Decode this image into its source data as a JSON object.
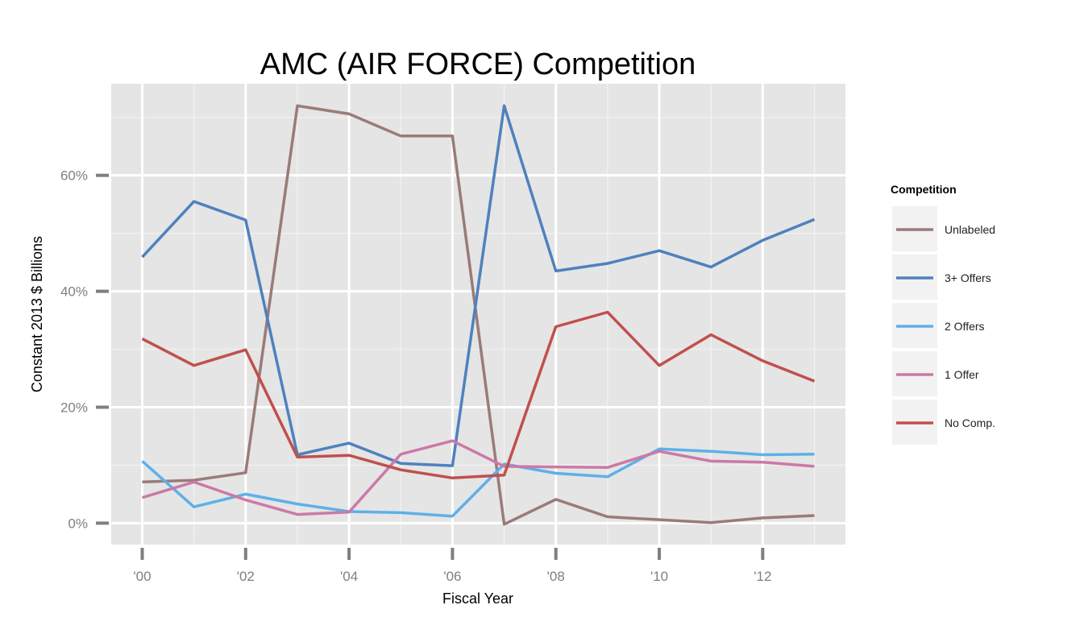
{
  "chart_data": {
    "type": "line",
    "title": "AMC (AIR FORCE) Competition",
    "xlabel": "Fiscal Year",
    "ylabel": "Constant 2013 $ Billions",
    "x": [
      2000,
      2001,
      2002,
      2003,
      2004,
      2005,
      2006,
      2007,
      2008,
      2009,
      2010,
      2011,
      2012,
      2013
    ],
    "xlim": [
      1999.4,
      2013.6
    ],
    "ylim": [
      -3.7,
      75.8
    ],
    "x_ticks": [
      {
        "value": 2000,
        "label": "'00"
      },
      {
        "value": 2002,
        "label": "'02"
      },
      {
        "value": 2004,
        "label": "'04"
      },
      {
        "value": 2006,
        "label": "'06"
      },
      {
        "value": 2008,
        "label": "'08"
      },
      {
        "value": 2010,
        "label": "'10"
      },
      {
        "value": 2012,
        "label": "'12"
      }
    ],
    "y_ticks": [
      {
        "value": 0,
        "label": "0%"
      },
      {
        "value": 20,
        "label": "20%"
      },
      {
        "value": 40,
        "label": "40%"
      },
      {
        "value": 60,
        "label": "60%"
      }
    ],
    "grid": true,
    "legend": {
      "title": "Competition",
      "position": "right"
    },
    "series": [
      {
        "name": "Unlabeled",
        "color": "#9a7b79",
        "values": [
          7.1,
          7.4,
          8.7,
          72.0,
          70.6,
          66.8,
          66.8,
          -0.2,
          4.1,
          1.1,
          0.6,
          0.1,
          0.9,
          1.3
        ]
      },
      {
        "name": "3+ Offers",
        "color": "#4f81bd",
        "values": [
          45.9,
          55.5,
          52.3,
          11.8,
          13.8,
          10.3,
          9.9,
          72.0,
          43.5,
          44.8,
          47.0,
          44.2,
          48.8,
          52.4
        ]
      },
      {
        "name": "2 Offers",
        "color": "#5eb0e8",
        "values": [
          10.7,
          2.8,
          5.0,
          3.3,
          2.0,
          1.8,
          1.2,
          10.2,
          8.6,
          8.0,
          12.8,
          12.4,
          11.8,
          11.9
        ]
      },
      {
        "name": "1 Offer",
        "color": "#cc79a7",
        "values": [
          4.4,
          7.1,
          4.0,
          1.5,
          1.9,
          11.9,
          14.2,
          9.8,
          9.7,
          9.6,
          12.4,
          10.7,
          10.5,
          9.8
        ]
      },
      {
        "name": "No Comp.",
        "color": "#c0504d",
        "values": [
          31.8,
          27.2,
          29.9,
          11.4,
          11.7,
          9.2,
          7.8,
          8.3,
          33.9,
          36.4,
          27.2,
          32.5,
          28.0,
          24.5
        ]
      }
    ]
  }
}
